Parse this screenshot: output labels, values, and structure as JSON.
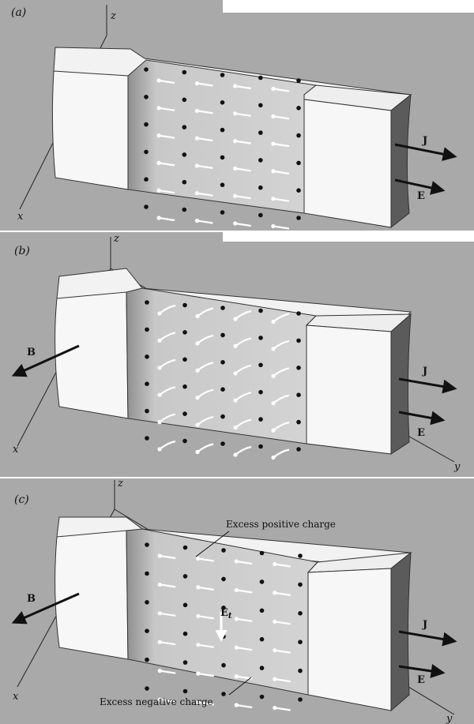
{
  "panels": [
    {
      "id": "a",
      "label": "(a)",
      "axes": {
        "z": "z",
        "x": "x",
        "y": ""
      },
      "vectors": {
        "J": "J",
        "E": "E",
        "B": ""
      },
      "carrier_motion": "straight"
    },
    {
      "id": "b",
      "label": "(b)",
      "axes": {
        "z": "z",
        "x": "x",
        "y": "y"
      },
      "vectors": {
        "J": "J",
        "E": "E",
        "B": "B"
      },
      "carrier_motion": "curved"
    },
    {
      "id": "c",
      "label": "(c)",
      "axes": {
        "z": "z",
        "x": "x",
        "y": "y"
      },
      "vectors": {
        "J": "J",
        "E": "E",
        "B": "B",
        "Et_main": "E",
        "Et_sub": "t"
      },
      "annotations": {
        "top": "Excess positive charge",
        "bottom": "Excess negative charge"
      },
      "carrier_motion": "straight"
    }
  ],
  "colors": {
    "background": "#a9a9a9",
    "block_face": "#f7f7f7",
    "slab": "#c6c6c6",
    "end_face": "#5b5b5b",
    "ink": "#111111"
  }
}
